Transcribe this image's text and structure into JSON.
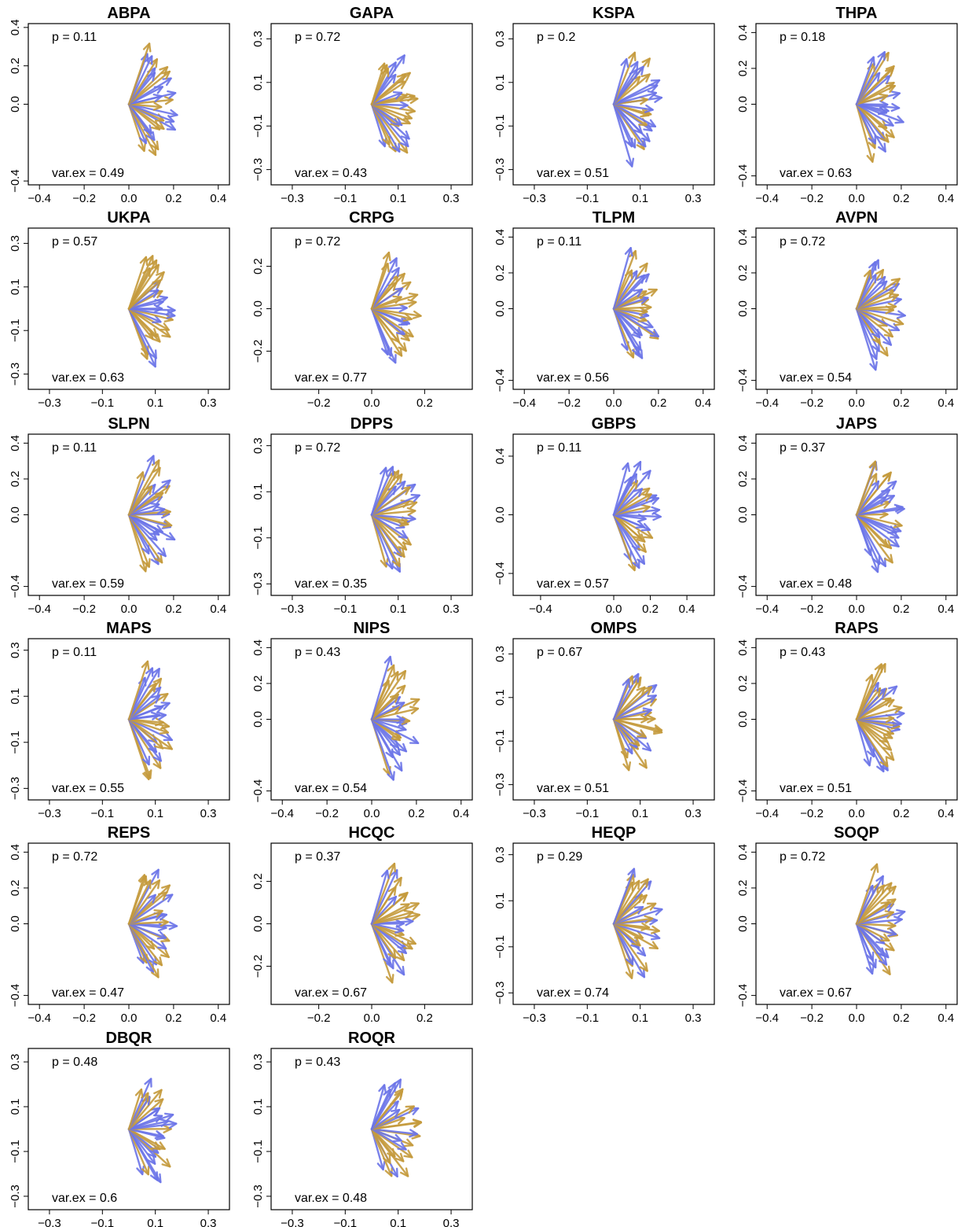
{
  "colors": {
    "series_a": "#6b74e8",
    "series_b": "#c49a3c",
    "frame": "#000000"
  },
  "chart_data": [
    {
      "type": "arrow-biplot",
      "title": "ABPA",
      "p_label": "p = 0.11",
      "varex_label": "var.ex = 0.49",
      "xlim": [
        -0.45,
        0.45
      ],
      "ylim": [
        -0.42,
        0.42
      ],
      "xticks": [
        -0.4,
        -0.2,
        0.0,
        0.2,
        0.4
      ],
      "yticks": [
        -0.4,
        0.0,
        0.2,
        0.4
      ],
      "seed": 1
    },
    {
      "type": "arrow-biplot",
      "title": "GAPA",
      "p_label": "p = 0.72",
      "varex_label": "var.ex = 0.43",
      "xlim": [
        -0.38,
        0.38
      ],
      "ylim": [
        -0.37,
        0.37
      ],
      "xticks": [
        -0.3,
        -0.1,
        0.1,
        0.3
      ],
      "yticks": [
        -0.3,
        -0.1,
        0.1,
        0.3
      ],
      "seed": 2
    },
    {
      "type": "arrow-biplot",
      "title": "KSPA",
      "p_label": "p = 0.2",
      "varex_label": "var.ex = 0.51",
      "xlim": [
        -0.38,
        0.38
      ],
      "ylim": [
        -0.37,
        0.37
      ],
      "xticks": [
        -0.3,
        -0.1,
        0.1,
        0.3
      ],
      "yticks": [
        -0.3,
        -0.1,
        0.1,
        0.3
      ],
      "seed": 3
    },
    {
      "type": "arrow-biplot",
      "title": "THPA",
      "p_label": "p = 0.18",
      "varex_label": "var.ex = 0.63",
      "xlim": [
        -0.45,
        0.45
      ],
      "ylim": [
        -0.45,
        0.45
      ],
      "xticks": [
        -0.4,
        -0.2,
        0.0,
        0.2,
        0.4
      ],
      "yticks": [
        -0.4,
        0.0,
        0.2,
        0.4
      ],
      "seed": 4
    },
    {
      "type": "arrow-biplot",
      "title": "UKPA",
      "p_label": "p = 0.57",
      "varex_label": "var.ex = 0.63",
      "xlim": [
        -0.38,
        0.38
      ],
      "ylim": [
        -0.37,
        0.37
      ],
      "xticks": [
        -0.3,
        -0.1,
        0.1,
        0.3
      ],
      "yticks": [
        -0.3,
        -0.1,
        0.1,
        0.3
      ],
      "seed": 5
    },
    {
      "type": "arrow-biplot",
      "title": "CRPG",
      "p_label": "p = 0.72",
      "varex_label": "var.ex = 0.77",
      "xlim": [
        -0.38,
        0.38
      ],
      "ylim": [
        -0.38,
        0.38
      ],
      "xticks": [
        -0.2,
        0.0,
        0.2
      ],
      "yticks": [
        -0.2,
        0.0,
        0.2
      ],
      "seed": 6
    },
    {
      "type": "arrow-biplot",
      "title": "TLPM",
      "p_label": "p = 0.11",
      "varex_label": "var.ex = 0.56",
      "xlim": [
        -0.45,
        0.45
      ],
      "ylim": [
        -0.45,
        0.45
      ],
      "xticks": [
        -0.4,
        -0.2,
        0.0,
        0.2,
        0.4
      ],
      "yticks": [
        -0.4,
        0.0,
        0.2,
        0.4
      ],
      "seed": 7
    },
    {
      "type": "arrow-biplot",
      "title": "AVPN",
      "p_label": "p = 0.72",
      "varex_label": "var.ex = 0.54",
      "xlim": [
        -0.45,
        0.45
      ],
      "ylim": [
        -0.45,
        0.45
      ],
      "xticks": [
        -0.4,
        -0.2,
        0.0,
        0.2,
        0.4
      ],
      "yticks": [
        -0.4,
        0.0,
        0.2,
        0.4
      ],
      "seed": 8
    },
    {
      "type": "arrow-biplot",
      "title": "SLPN",
      "p_label": "p = 0.11",
      "varex_label": "var.ex = 0.59",
      "xlim": [
        -0.45,
        0.45
      ],
      "ylim": [
        -0.45,
        0.45
      ],
      "xticks": [
        -0.4,
        -0.2,
        0.0,
        0.2,
        0.4
      ],
      "yticks": [
        -0.4,
        0.0,
        0.2,
        0.4
      ],
      "seed": 9
    },
    {
      "type": "arrow-biplot",
      "title": "DPPS",
      "p_label": "p = 0.72",
      "varex_label": "var.ex = 0.35",
      "xlim": [
        -0.38,
        0.38
      ],
      "ylim": [
        -0.35,
        0.35
      ],
      "xticks": [
        -0.3,
        -0.1,
        0.1,
        0.3
      ],
      "yticks": [
        -0.3,
        -0.1,
        0.1,
        0.3
      ],
      "seed": 10
    },
    {
      "type": "arrow-biplot",
      "title": "GBPS",
      "p_label": "p = 0.11",
      "varex_label": "var.ex = 0.57",
      "xlim": [
        -0.55,
        0.55
      ],
      "ylim": [
        -0.55,
        0.55
      ],
      "xticks": [
        -0.4,
        0.0,
        0.2,
        0.4
      ],
      "yticks": [
        -0.4,
        0.0,
        0.4
      ],
      "seed": 11
    },
    {
      "type": "arrow-biplot",
      "title": "JAPS",
      "p_label": "p = 0.37",
      "varex_label": "var.ex = 0.48",
      "xlim": [
        -0.45,
        0.45
      ],
      "ylim": [
        -0.45,
        0.45
      ],
      "xticks": [
        -0.4,
        -0.2,
        0.0,
        0.2,
        0.4
      ],
      "yticks": [
        -0.4,
        0.0,
        0.2,
        0.4
      ],
      "seed": 12
    },
    {
      "type": "arrow-biplot",
      "title": "MAPS",
      "p_label": "p = 0.11",
      "varex_label": "var.ex = 0.55",
      "xlim": [
        -0.38,
        0.38
      ],
      "ylim": [
        -0.35,
        0.35
      ],
      "xticks": [
        -0.3,
        -0.1,
        0.1,
        0.3
      ],
      "yticks": [
        -0.3,
        -0.1,
        0.1,
        0.3
      ],
      "seed": 13
    },
    {
      "type": "arrow-biplot",
      "title": "NIPS",
      "p_label": "p = 0.43",
      "varex_label": "var.ex = 0.54",
      "xlim": [
        -0.45,
        0.45
      ],
      "ylim": [
        -0.45,
        0.45
      ],
      "xticks": [
        -0.4,
        -0.2,
        0.0,
        0.2,
        0.4
      ],
      "yticks": [
        -0.4,
        0.0,
        0.2,
        0.4
      ],
      "seed": 14
    },
    {
      "type": "arrow-biplot",
      "title": "OMPS",
      "p_label": "p = 0.67",
      "varex_label": "var.ex = 0.51",
      "xlim": [
        -0.38,
        0.38
      ],
      "ylim": [
        -0.37,
        0.37
      ],
      "xticks": [
        -0.3,
        -0.1,
        0.1,
        0.3
      ],
      "yticks": [
        -0.3,
        -0.1,
        0.1,
        0.3
      ],
      "seed": 15
    },
    {
      "type": "arrow-biplot",
      "title": "RAPS",
      "p_label": "p = 0.43",
      "varex_label": "var.ex = 0.51",
      "xlim": [
        -0.45,
        0.45
      ],
      "ylim": [
        -0.45,
        0.45
      ],
      "xticks": [
        -0.4,
        -0.2,
        0.0,
        0.2,
        0.4
      ],
      "yticks": [
        -0.4,
        0.0,
        0.2,
        0.4
      ],
      "seed": 16
    },
    {
      "type": "arrow-biplot",
      "title": "REPS",
      "p_label": "p = 0.72",
      "varex_label": "var.ex = 0.47",
      "xlim": [
        -0.45,
        0.45
      ],
      "ylim": [
        -0.45,
        0.45
      ],
      "xticks": [
        -0.4,
        -0.2,
        0.0,
        0.2,
        0.4
      ],
      "yticks": [
        -0.4,
        0.0,
        0.2,
        0.4
      ],
      "seed": 17
    },
    {
      "type": "arrow-biplot",
      "title": "HCQC",
      "p_label": "p = 0.37",
      "varex_label": "var.ex = 0.67",
      "xlim": [
        -0.38,
        0.38
      ],
      "ylim": [
        -0.38,
        0.38
      ],
      "xticks": [
        -0.2,
        0.0,
        0.2
      ],
      "yticks": [
        -0.2,
        0.0,
        0.2
      ],
      "seed": 18
    },
    {
      "type": "arrow-biplot",
      "title": "HEQP",
      "p_label": "p = 0.29",
      "varex_label": "var.ex = 0.74",
      "xlim": [
        -0.38,
        0.38
      ],
      "ylim": [
        -0.35,
        0.35
      ],
      "xticks": [
        -0.3,
        -0.1,
        0.1,
        0.3
      ],
      "yticks": [
        -0.3,
        -0.1,
        0.1,
        0.3
      ],
      "seed": 19
    },
    {
      "type": "arrow-biplot",
      "title": "SOQP",
      "p_label": "p = 0.72",
      "varex_label": "var.ex = 0.67",
      "xlim": [
        -0.45,
        0.45
      ],
      "ylim": [
        -0.45,
        0.45
      ],
      "xticks": [
        -0.4,
        -0.2,
        0.0,
        0.2,
        0.4
      ],
      "yticks": [
        -0.4,
        0.0,
        0.2,
        0.4
      ],
      "seed": 20
    },
    {
      "type": "arrow-biplot",
      "title": "DBQR",
      "p_label": "p = 0.48",
      "varex_label": "var.ex = 0.6",
      "xlim": [
        -0.38,
        0.38
      ],
      "ylim": [
        -0.36,
        0.36
      ],
      "xticks": [
        -0.3,
        -0.1,
        0.1,
        0.3
      ],
      "yticks": [
        -0.3,
        -0.1,
        0.1,
        0.3
      ],
      "seed": 21
    },
    {
      "type": "arrow-biplot",
      "title": "ROQR",
      "p_label": "p = 0.43",
      "varex_label": "var.ex = 0.48",
      "xlim": [
        -0.38,
        0.38
      ],
      "ylim": [
        -0.36,
        0.36
      ],
      "xticks": [
        -0.3,
        -0.1,
        0.1,
        0.3
      ],
      "yticks": [
        -0.3,
        -0.1,
        0.1,
        0.3
      ],
      "seed": 22
    }
  ]
}
